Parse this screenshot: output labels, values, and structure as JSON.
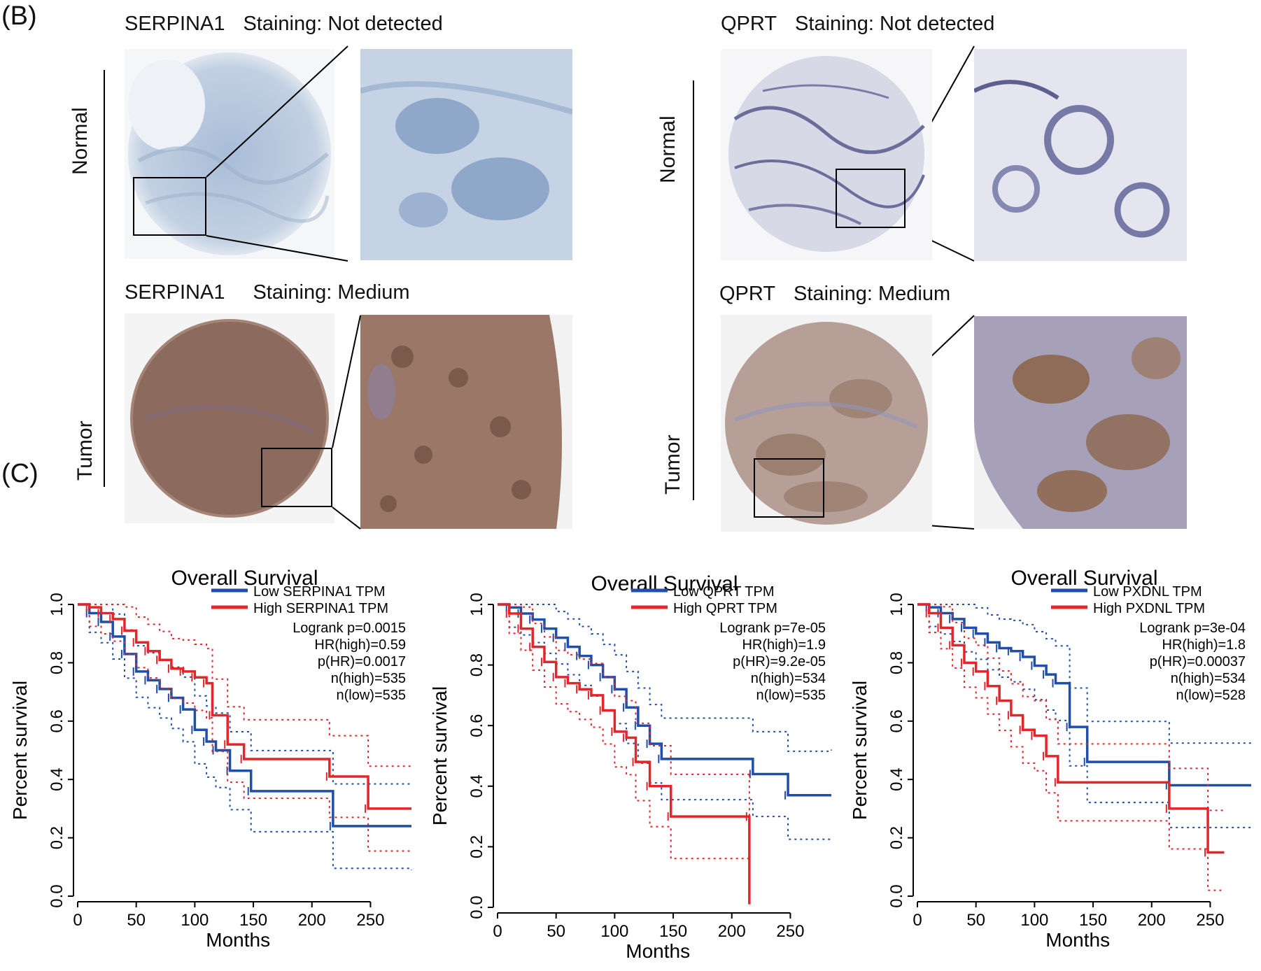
{
  "panels": {
    "b_label": "(B)",
    "c_label": "(C)"
  },
  "ihc": {
    "serpina1_normal": {
      "gene": "SERPINA1",
      "staining": "Staining: Not detected"
    },
    "serpina1_tumor": {
      "gene": "SERPINA1",
      "staining": "Staining: Medium"
    },
    "qprt_normal": {
      "gene": "QPRT",
      "staining": "Staining: Not detected"
    },
    "qprt_tumor": {
      "gene": "QPRT",
      "staining": "Staining: Medium"
    },
    "row_labels": {
      "normal": "Normal",
      "tumor": "Tumor"
    }
  },
  "colors": {
    "low": "#1f4fa8",
    "high": "#e3262b",
    "normal_tissue": "#b9c8dc",
    "tumor_tissue": "#8a6650"
  },
  "chart_data": [
    {
      "type": "line",
      "title": "Overall Survival",
      "xlabel": "Months",
      "ylabel": "Percent survival",
      "xlim": [
        0,
        285
      ],
      "ylim": [
        0,
        1
      ],
      "xticks": [
        0,
        50,
        100,
        150,
        200,
        250
      ],
      "yticks": [
        "0.0",
        "0.2",
        "0.4",
        "0.6",
        "0.8",
        "1.0"
      ],
      "legend": [
        "Low SERPINA1 TPM",
        "High SERPINA1 TPM"
      ],
      "stats": [
        "Logrank p=0.0015",
        "HR(high)=0.59",
        "p(HR)=0.0017",
        "n(high)=535",
        "n(low)=535"
      ],
      "series": [
        {
          "name": "Low SERPINA1 TPM",
          "color": "#1f4fa8",
          "x": [
            0,
            10,
            20,
            30,
            40,
            50,
            60,
            70,
            80,
            90,
            100,
            110,
            118,
            130,
            148,
            218,
            285
          ],
          "y": [
            1.0,
            0.97,
            0.94,
            0.89,
            0.83,
            0.77,
            0.74,
            0.71,
            0.68,
            0.64,
            0.57,
            0.53,
            0.5,
            0.43,
            0.36,
            0.24,
            0.24
          ]
        },
        {
          "name": "High SERPINA1 TPM",
          "color": "#e3262b",
          "x": [
            0,
            10,
            20,
            30,
            40,
            50,
            60,
            70,
            80,
            90,
            100,
            110,
            115,
            128,
            142,
            215,
            248,
            285
          ],
          "y": [
            1.0,
            0.99,
            0.97,
            0.95,
            0.91,
            0.87,
            0.84,
            0.81,
            0.78,
            0.77,
            0.75,
            0.73,
            0.62,
            0.52,
            0.47,
            0.41,
            0.3,
            0.3
          ]
        }
      ]
    },
    {
      "type": "line",
      "title": "Overall Survival",
      "xlabel": "Months",
      "ylabel": "Percent survival",
      "xlim": [
        0,
        285
      ],
      "ylim": [
        0,
        1
      ],
      "xticks": [
        0,
        50,
        100,
        150,
        200,
        250
      ],
      "yticks": [
        "0.0",
        "0.2",
        "0.4",
        "0.6",
        "0.8",
        "1.0"
      ],
      "legend": [
        "Low QPRT TPM",
        "High QPRT TPM"
      ],
      "stats": [
        "Logrank p=7e-05",
        "HR(high)=1.9",
        "p(HR)=9.2e-05",
        "n(high)=534",
        "n(low)=535"
      ],
      "series": [
        {
          "name": "Low QPRT TPM",
          "color": "#1f4fa8",
          "x": [
            0,
            10,
            20,
            30,
            40,
            50,
            60,
            70,
            80,
            90,
            100,
            110,
            120,
            130,
            140,
            218,
            248,
            285
          ],
          "y": [
            1.0,
            0.99,
            0.97,
            0.95,
            0.92,
            0.89,
            0.86,
            0.83,
            0.8,
            0.76,
            0.72,
            0.66,
            0.6,
            0.54,
            0.49,
            0.44,
            0.37,
            0.37
          ]
        },
        {
          "name": "High QPRT TPM",
          "color": "#e3262b",
          "x": [
            0,
            10,
            20,
            30,
            40,
            50,
            60,
            70,
            80,
            90,
            100,
            110,
            118,
            130,
            148,
            215,
            215
          ],
          "y": [
            1.0,
            0.97,
            0.92,
            0.86,
            0.81,
            0.76,
            0.74,
            0.72,
            0.7,
            0.65,
            0.58,
            0.56,
            0.48,
            0.4,
            0.3,
            0.3,
            0.01
          ]
        }
      ]
    },
    {
      "type": "line",
      "title": "Overall Survival",
      "xlabel": "Months",
      "ylabel": "Percent survival",
      "xlim": [
        0,
        285
      ],
      "ylim": [
        0,
        1
      ],
      "xticks": [
        0,
        50,
        100,
        150,
        200,
        250
      ],
      "yticks": [
        "0.0",
        "0.2",
        "0.4",
        "0.6",
        "0.8",
        "1.0"
      ],
      "legend": [
        "Low PXDNL TPM",
        "High PXDNL TPM"
      ],
      "stats": [
        "Logrank p=3e-04",
        "HR(high)=1.8",
        "p(HR)=0.00037",
        "n(high)=534",
        "n(low)=528"
      ],
      "series": [
        {
          "name": "Low PXDNL TPM",
          "color": "#1f4fa8",
          "x": [
            0,
            10,
            20,
            30,
            40,
            50,
            60,
            70,
            80,
            90,
            100,
            110,
            118,
            130,
            145,
            215,
            285
          ],
          "y": [
            1.0,
            0.99,
            0.97,
            0.95,
            0.92,
            0.9,
            0.87,
            0.85,
            0.84,
            0.82,
            0.79,
            0.76,
            0.73,
            0.58,
            0.46,
            0.38,
            0.38
          ]
        },
        {
          "name": "High PXDNL TPM",
          "color": "#e3262b",
          "x": [
            0,
            10,
            20,
            30,
            40,
            50,
            60,
            70,
            80,
            90,
            100,
            110,
            120,
            215,
            248,
            262
          ],
          "y": [
            1.0,
            0.97,
            0.92,
            0.86,
            0.8,
            0.77,
            0.72,
            0.67,
            0.62,
            0.57,
            0.55,
            0.48,
            0.39,
            0.3,
            0.15,
            0.15
          ]
        }
      ]
    }
  ]
}
